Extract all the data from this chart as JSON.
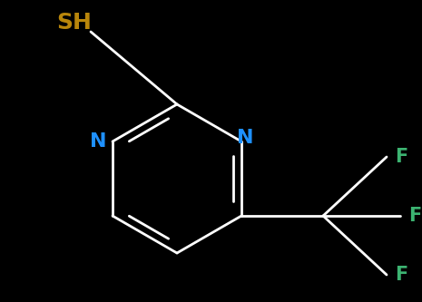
{
  "background_color": "#000000",
  "bond_color": "#ffffff",
  "N_color": "#1e90ff",
  "F_color": "#3cb371",
  "S_color": "#b8860b",
  "label_SH": "SH",
  "label_N": "N",
  "label_F": "F",
  "font_size": 15,
  "bond_lw": 2.0,
  "figsize": [
    4.65,
    3.33
  ],
  "dpi": 100
}
